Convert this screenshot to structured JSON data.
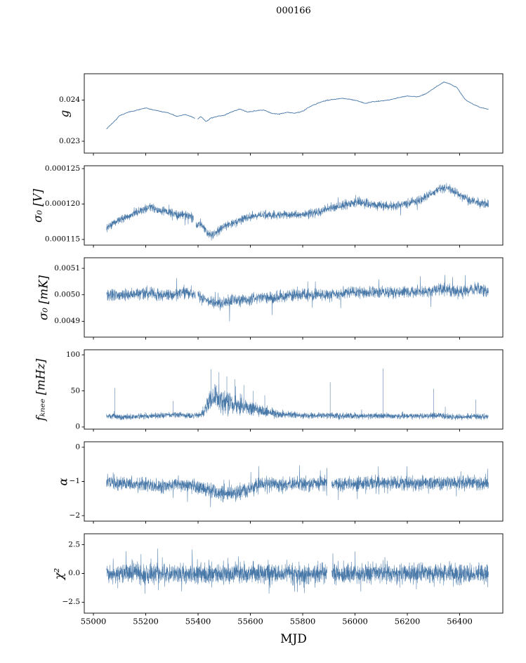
{
  "title": "000166",
  "colors": {
    "line": "#4878a8",
    "axis": "#000000",
    "text": "#000000",
    "background": "#ffffff"
  },
  "chart_meta": {
    "xlabel": "MJD",
    "xlim": [
      54965,
      56565
    ],
    "xticks": [
      55000,
      55200,
      55400,
      55600,
      55800,
      56000,
      56200,
      56400
    ],
    "xtick_labels": [
      "55000",
      "55200",
      "55400",
      "55600",
      "55800",
      "56000",
      "56200",
      "56400"
    ]
  },
  "chart_data": [
    {
      "id": "g",
      "type": "line",
      "ylabel": "g",
      "ylim": [
        0.02271,
        0.02464
      ],
      "yticks": [
        0.023,
        0.024
      ],
      "ytick_labels": [
        "0.023",
        "0.024"
      ],
      "x_start": 55050,
      "x_end": 56510,
      "n_points": 650,
      "noise": 1.4e-05,
      "spike_prob": 0.0,
      "spike_mult": 1.0,
      "line_width": 0.9,
      "gaps": [
        [
          55388,
          55398
        ]
      ],
      "spikes": [],
      "mean_x": [
        55050,
        55075,
        55100,
        55130,
        55160,
        55200,
        55230,
        55260,
        55290,
        55320,
        55350,
        55380,
        55395,
        55410,
        55430,
        55450,
        55470,
        55500,
        55530,
        55560,
        55590,
        55620,
        55650,
        55680,
        55710,
        55740,
        55770,
        55800,
        55830,
        55860,
        55890,
        55920,
        55950,
        55980,
        56010,
        56040,
        56070,
        56100,
        56130,
        56160,
        56200,
        56240,
        56270,
        56300,
        56320,
        56340,
        56360,
        56390,
        56420,
        56450,
        56480,
        56510
      ],
      "mean_y": [
        0.0233,
        0.02345,
        0.02362,
        0.0237,
        0.02374,
        0.02381,
        0.02376,
        0.02372,
        0.02368,
        0.0236,
        0.02365,
        0.02358,
        0.02352,
        0.0236,
        0.02348,
        0.02356,
        0.0236,
        0.02363,
        0.02372,
        0.02378,
        0.02371,
        0.02374,
        0.02376,
        0.02368,
        0.02366,
        0.0237,
        0.02368,
        0.02373,
        0.02385,
        0.02393,
        0.02399,
        0.02402,
        0.02404,
        0.02402,
        0.02398,
        0.02392,
        0.02396,
        0.02398,
        0.024,
        0.02405,
        0.0241,
        0.02408,
        0.02415,
        0.02428,
        0.02436,
        0.02444,
        0.0244,
        0.0243,
        0.02402,
        0.0239,
        0.02382,
        0.02378
      ]
    },
    {
      "id": "sigma0-v",
      "type": "line",
      "ylabel": "σ₀ [V]",
      "ylim": [
        0.0001142,
        0.0001254
      ],
      "yticks": [
        0.000115,
        0.00012,
        0.000125
      ],
      "ytick_labels": [
        "0.000115",
        "0.000120",
        "0.000125"
      ],
      "x_start": 55050,
      "x_end": 56510,
      "n_points": 2400,
      "noise": 9e-07,
      "spike_prob": 0.02,
      "spike_mult": 2.2,
      "line_width": 0.55,
      "gaps": [
        [
          55383,
          55392
        ]
      ],
      "spikes": [],
      "mean_x": [
        55050,
        55080,
        55120,
        55160,
        55200,
        55220,
        55250,
        55280,
        55310,
        55340,
        55370,
        55382,
        55394,
        55405,
        55420,
        55435,
        55450,
        55465,
        55480,
        55510,
        55540,
        55580,
        55620,
        55660,
        55700,
        55740,
        55780,
        55820,
        55860,
        55900,
        55940,
        55980,
        56010,
        56050,
        56090,
        56130,
        56170,
        56210,
        56250,
        56290,
        56320,
        56350,
        56380,
        56410,
        56440,
        56470,
        56510
      ],
      "mean_y": [
        0.0001166,
        0.0001173,
        0.000118,
        0.0001188,
        0.0001193,
        0.0001197,
        0.0001191,
        0.0001189,
        0.0001186,
        0.0001184,
        0.0001183,
        0.000118,
        0.000117,
        0.0001173,
        0.0001168,
        0.000116,
        0.0001156,
        0.0001158,
        0.0001163,
        0.000117,
        0.0001174,
        0.0001181,
        0.0001184,
        0.0001185,
        0.0001184,
        0.0001186,
        0.0001185,
        0.0001186,
        0.0001189,
        0.0001194,
        0.0001197,
        0.0001201,
        0.0001203,
        0.00012,
        0.0001198,
        0.0001197,
        0.0001199,
        0.0001202,
        0.0001206,
        0.0001214,
        0.0001221,
        0.0001224,
        0.0001218,
        0.0001211,
        0.0001205,
        0.0001201,
        0.00012
      ]
    },
    {
      "id": "sigma0-mk",
      "type": "line",
      "ylabel": "σ₀ [mK]",
      "ylim": [
        0.00484,
        0.00514
      ],
      "yticks": [
        0.0049,
        0.005,
        0.0051
      ],
      "ytick_labels": [
        "0.0049",
        "0.0050",
        "0.0051"
      ],
      "x_start": 55050,
      "x_end": 56510,
      "n_points": 2400,
      "noise": 3.3e-05,
      "spike_prob": 0.02,
      "spike_mult": 3.0,
      "line_width": 0.55,
      "gaps": [
        [
          55390,
          55399
        ]
      ],
      "spikes": [],
      "mean_x": [
        55050,
        55100,
        55150,
        55200,
        55250,
        55300,
        55350,
        55400,
        55430,
        55460,
        55500,
        55540,
        55580,
        55630,
        55700,
        55770,
        55840,
        55910,
        55980,
        56050,
        56120,
        56190,
        56260,
        56330,
        56400,
        56460,
        56510
      ],
      "mean_y": [
        0.005,
        0.005,
        0.005,
        0.00501,
        0.005,
        0.005,
        0.00501,
        0.005,
        0.00498,
        0.00497,
        0.00497,
        0.00498,
        0.00498,
        0.00499,
        0.00499,
        0.005,
        0.005,
        0.005,
        0.00501,
        0.00501,
        0.00501,
        0.00501,
        0.00501,
        0.00502,
        0.00501,
        0.00502,
        0.00501
      ]
    },
    {
      "id": "fknee",
      "type": "line",
      "ylabel": "fₖₙₑₑ [mHz]",
      "ylim": [
        -3,
        107
      ],
      "yticks": [
        0,
        50,
        100
      ],
      "ytick_labels": [
        "0",
        "50",
        "100"
      ],
      "x_start": 55050,
      "x_end": 56510,
      "n_points": 2600,
      "spike_prob": 0.008,
      "spike_mult": 2.5,
      "spike_up": true,
      "floor": 5,
      "line_width": 0.55,
      "gaps": [],
      "noise_x": [
        55050,
        55400,
        55425,
        55445,
        55465,
        55490,
        55540,
        55590,
        55640,
        55700,
        55800,
        56510
      ],
      "noise_y": [
        6,
        6,
        12,
        24,
        26,
        24,
        20,
        16,
        12,
        8,
        6,
        6
      ],
      "spikes": [
        [
          55082,
          54
        ],
        [
          55305,
          36
        ],
        [
          55450,
          80
        ],
        [
          55480,
          76
        ],
        [
          55510,
          70
        ],
        [
          55540,
          66
        ],
        [
          55575,
          58
        ],
        [
          55610,
          50
        ],
        [
          55655,
          44
        ],
        [
          55905,
          62
        ],
        [
          56107,
          81
        ],
        [
          56300,
          53
        ],
        [
          56345,
          28
        ],
        [
          56462,
          38
        ]
      ],
      "mean_x": [
        55050,
        55100,
        55150,
        55200,
        55250,
        55300,
        55350,
        55400,
        55425,
        55445,
        55465,
        55490,
        55515,
        55540,
        55565,
        55590,
        55615,
        55640,
        55670,
        55700,
        55750,
        55800,
        55850,
        55900,
        55950,
        56000,
        56050,
        56100,
        56150,
        56200,
        56250,
        56300,
        56350,
        56400,
        56450,
        56510
      ],
      "mean_y": [
        15,
        14,
        14,
        15,
        16,
        17,
        16,
        15,
        22,
        38,
        42,
        38,
        34,
        32,
        30,
        27,
        25,
        23,
        20,
        18,
        17,
        16,
        16,
        16,
        15,
        15,
        15,
        16,
        15,
        15,
        15,
        16,
        15,
        14,
        15,
        14
      ]
    },
    {
      "id": "alpha",
      "type": "line",
      "ylabel": "α",
      "ylim": [
        -2.16,
        0.16
      ],
      "yticks": [
        -2,
        -1,
        0
      ],
      "ytick_labels": [
        "−2",
        "−1",
        "0"
      ],
      "x_start": 55050,
      "x_end": 56510,
      "n_points": 2600,
      "noise": 0.3,
      "spike_prob": 0.04,
      "spike_mult": 2.2,
      "line_width": 0.55,
      "gaps": [
        [
          55893,
          55911
        ]
      ],
      "spikes": [],
      "mean_x": [
        55050,
        55150,
        55250,
        55320,
        55380,
        55430,
        55470,
        55510,
        55550,
        55590,
        55630,
        55700,
        55800,
        55900,
        56000,
        56100,
        56200,
        56300,
        56400,
        56510
      ],
      "mean_y": [
        -1.02,
        -1.06,
        -1.14,
        -1.08,
        -1.12,
        -1.22,
        -1.32,
        -1.35,
        -1.3,
        -1.22,
        -1.12,
        -1.06,
        -1.08,
        -1.06,
        -1.08,
        -1.05,
        -1.06,
        -1.05,
        -1.04,
        -1.05
      ]
    },
    {
      "id": "chi2",
      "type": "line",
      "ylabel": "χ²",
      "ylim": [
        -3.45,
        3.45
      ],
      "yticks": [
        -2.5,
        0.0,
        2.5
      ],
      "ytick_labels": [
        "−2.5",
        "0.0",
        "2.5"
      ],
      "x_start": 55050,
      "x_end": 56510,
      "n_points": 2800,
      "noise": 1.2,
      "spike_prob": 0.05,
      "spike_mult": 2.1,
      "line_width": 0.55,
      "gaps": [
        [
          55893,
          55911
        ]
      ],
      "spikes": [],
      "mean_x": [
        55050,
        56510
      ],
      "mean_y": [
        0,
        0
      ]
    }
  ]
}
